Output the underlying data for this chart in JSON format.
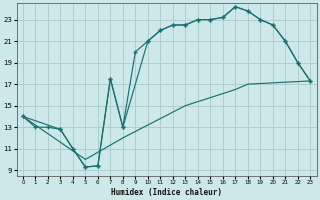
{
  "bg_color": "#cce8e8",
  "grid_color": "#b0cccc",
  "line_color": "#1a7070",
  "xlabel": "Humidex (Indice chaleur)",
  "xlim": [
    -0.5,
    23.5
  ],
  "ylim": [
    8.5,
    24.5
  ],
  "xticks": [
    0,
    1,
    2,
    3,
    4,
    5,
    6,
    7,
    8,
    9,
    10,
    11,
    12,
    13,
    14,
    15,
    16,
    17,
    18,
    19,
    20,
    21,
    22,
    23
  ],
  "yticks": [
    9,
    11,
    13,
    15,
    17,
    19,
    21,
    23
  ],
  "curve1_x": [
    0,
    1,
    2,
    3,
    4,
    5,
    6,
    7,
    8,
    9,
    10,
    11,
    12,
    13,
    14,
    15,
    16,
    17,
    18,
    19,
    20,
    21,
    22,
    23
  ],
  "curve1_y": [
    14,
    13,
    13,
    12.8,
    11,
    9.3,
    9.4,
    17.5,
    13,
    20,
    21,
    22,
    22.5,
    22.5,
    23,
    23,
    23.2,
    24.2,
    23.8,
    23,
    22.5,
    21,
    19,
    17.3
  ],
  "curve2_x": [
    0,
    3,
    4,
    5,
    6,
    7,
    8,
    10,
    11,
    12,
    13,
    14,
    15,
    16,
    17,
    18,
    19,
    20,
    21,
    22,
    23
  ],
  "curve2_y": [
    14,
    12.8,
    11,
    9.3,
    9.4,
    17.5,
    13,
    21,
    22,
    22.5,
    22.5,
    23,
    23,
    23.2,
    24.2,
    23.8,
    23,
    22.5,
    21,
    19,
    17.3
  ],
  "curve3_x": [
    0,
    5,
    8,
    13,
    17,
    18,
    23
  ],
  "curve3_y": [
    14,
    10,
    12,
    15,
    16.5,
    17,
    17.3
  ]
}
